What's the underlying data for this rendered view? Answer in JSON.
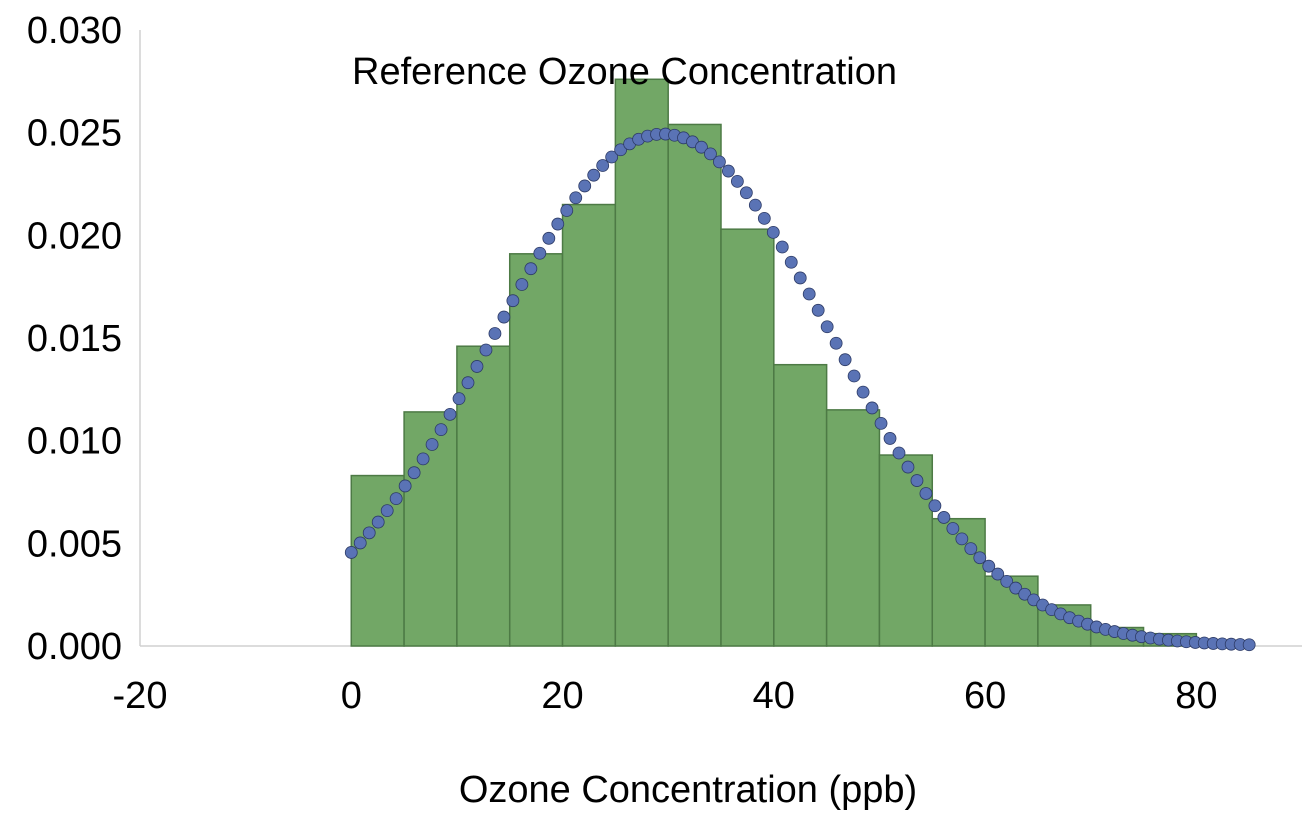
{
  "chart_data": {
    "type": "bar",
    "title": "Reference Ozone Concentration",
    "xlabel": "Ozone Concentration (ppb)",
    "ylabel": "",
    "xlim": [
      -20,
      90
    ],
    "ylim": [
      0,
      0.03
    ],
    "grid": false,
    "legend": "none",
    "x_ticks": [
      -20,
      0,
      20,
      40,
      60,
      80
    ],
    "x_tick_labels": [
      "-20",
      "0",
      "20",
      "40",
      "60",
      "80"
    ],
    "y_ticks": [
      0,
      0.005,
      0.01,
      0.015,
      0.02,
      0.025,
      0.03
    ],
    "y_tick_labels": [
      "0.000",
      "0.005",
      "0.010",
      "0.015",
      "0.020",
      "0.025",
      "0.030"
    ],
    "bins": [
      {
        "x0": 0,
        "x1": 5,
        "value": 0.0083
      },
      {
        "x0": 5,
        "x1": 10,
        "value": 0.0114
      },
      {
        "x0": 10,
        "x1": 15,
        "value": 0.0146
      },
      {
        "x0": 15,
        "x1": 20,
        "value": 0.0191
      },
      {
        "x0": 20,
        "x1": 25,
        "value": 0.0215
      },
      {
        "x0": 25,
        "x1": 30,
        "value": 0.0276
      },
      {
        "x0": 30,
        "x1": 35,
        "value": 0.0254
      },
      {
        "x0": 35,
        "x1": 40,
        "value": 0.0203
      },
      {
        "x0": 40,
        "x1": 45,
        "value": 0.0137
      },
      {
        "x0": 45,
        "x1": 50,
        "value": 0.0115
      },
      {
        "x0": 50,
        "x1": 55,
        "value": 0.0093
      },
      {
        "x0": 55,
        "x1": 60,
        "value": 0.0062
      },
      {
        "x0": 60,
        "x1": 65,
        "value": 0.0034
      },
      {
        "x0": 65,
        "x1": 70,
        "value": 0.002
      },
      {
        "x0": 70,
        "x1": 75,
        "value": 0.0009
      },
      {
        "x0": 75,
        "x1": 80,
        "value": 0.0006
      },
      {
        "x0": 80,
        "x1": 85,
        "value": 0.0002
      }
    ],
    "fit_curve": {
      "type": "normal-pdf",
      "mean": 29.5,
      "sd": 16,
      "x_start": 0,
      "x_end": 85,
      "step": 0.85
    },
    "colors": {
      "bar_fill": "#72a766",
      "bar_edge": "#4d7a45",
      "fit_points": "#5a73b5",
      "axis_line": "#d0d0d0"
    }
  }
}
